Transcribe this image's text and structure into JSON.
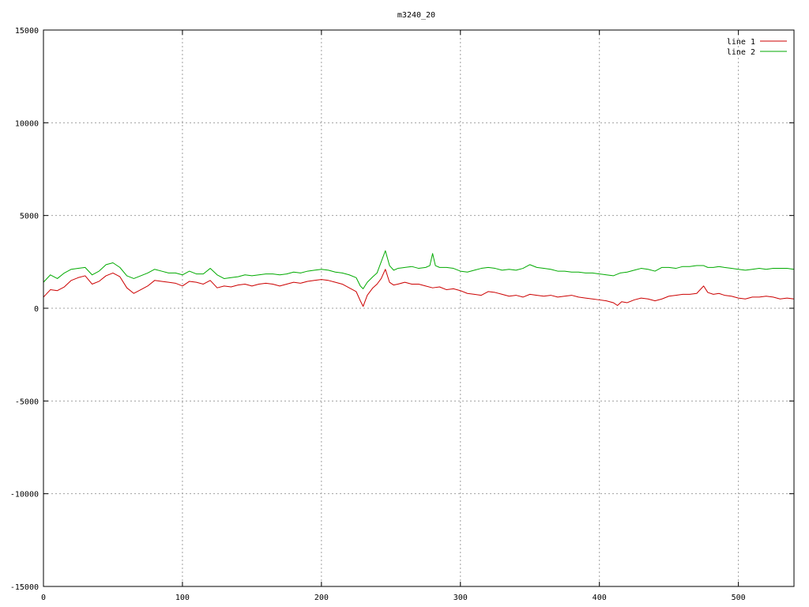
{
  "chart_data": {
    "type": "line",
    "title": "m3240_20",
    "xlabel": "",
    "ylabel": "",
    "xlim": [
      0,
      540
    ],
    "ylim": [
      -15000,
      15000
    ],
    "x_ticks": [
      0,
      100,
      200,
      300,
      400,
      500
    ],
    "y_ticks": [
      -15000,
      -10000,
      -5000,
      0,
      5000,
      10000,
      15000
    ],
    "x_tick_labels": [
      "0",
      "100",
      "200",
      "300",
      "400",
      "500"
    ],
    "y_tick_labels": [
      "-15000",
      "-10000",
      "-5000",
      "0",
      "5000",
      "10000",
      "15000"
    ],
    "grid": true,
    "legend_position": "top-right",
    "series": [
      {
        "name": "line 1",
        "color": "#cc0000",
        "points": [
          [
            0,
            600
          ],
          [
            5,
            1000
          ],
          [
            10,
            950
          ],
          [
            15,
            1150
          ],
          [
            20,
            1500
          ],
          [
            25,
            1650
          ],
          [
            30,
            1750
          ],
          [
            35,
            1300
          ],
          [
            40,
            1450
          ],
          [
            45,
            1750
          ],
          [
            50,
            1900
          ],
          [
            55,
            1700
          ],
          [
            60,
            1100
          ],
          [
            65,
            800
          ],
          [
            70,
            1000
          ],
          [
            75,
            1200
          ],
          [
            80,
            1500
          ],
          [
            85,
            1450
          ],
          [
            90,
            1400
          ],
          [
            95,
            1350
          ],
          [
            100,
            1200
          ],
          [
            105,
            1450
          ],
          [
            110,
            1400
          ],
          [
            115,
            1300
          ],
          [
            120,
            1500
          ],
          [
            125,
            1100
          ],
          [
            130,
            1200
          ],
          [
            135,
            1150
          ],
          [
            140,
            1250
          ],
          [
            145,
            1300
          ],
          [
            150,
            1200
          ],
          [
            155,
            1300
          ],
          [
            160,
            1350
          ],
          [
            165,
            1300
          ],
          [
            170,
            1200
          ],
          [
            175,
            1300
          ],
          [
            180,
            1400
          ],
          [
            185,
            1350
          ],
          [
            190,
            1450
          ],
          [
            195,
            1500
          ],
          [
            200,
            1550
          ],
          [
            205,
            1500
          ],
          [
            210,
            1400
          ],
          [
            215,
            1300
          ],
          [
            220,
            1100
          ],
          [
            225,
            900
          ],
          [
            228,
            400
          ],
          [
            230,
            100
          ],
          [
            233,
            700
          ],
          [
            237,
            1100
          ],
          [
            240,
            1300
          ],
          [
            243,
            1600
          ],
          [
            246,
            2100
          ],
          [
            249,
            1400
          ],
          [
            252,
            1250
          ],
          [
            255,
            1300
          ],
          [
            260,
            1400
          ],
          [
            265,
            1300
          ],
          [
            270,
            1300
          ],
          [
            275,
            1200
          ],
          [
            280,
            1100
          ],
          [
            285,
            1150
          ],
          [
            290,
            1000
          ],
          [
            295,
            1050
          ],
          [
            300,
            950
          ],
          [
            305,
            800
          ],
          [
            310,
            750
          ],
          [
            315,
            700
          ],
          [
            320,
            900
          ],
          [
            325,
            850
          ],
          [
            330,
            750
          ],
          [
            335,
            650
          ],
          [
            340,
            700
          ],
          [
            345,
            600
          ],
          [
            350,
            750
          ],
          [
            355,
            700
          ],
          [
            360,
            650
          ],
          [
            365,
            700
          ],
          [
            370,
            600
          ],
          [
            375,
            650
          ],
          [
            380,
            700
          ],
          [
            385,
            600
          ],
          [
            390,
            550
          ],
          [
            395,
            500
          ],
          [
            400,
            450
          ],
          [
            405,
            400
          ],
          [
            410,
            300
          ],
          [
            413,
            150
          ],
          [
            416,
            350
          ],
          [
            420,
            300
          ],
          [
            425,
            450
          ],
          [
            430,
            550
          ],
          [
            435,
            500
          ],
          [
            440,
            400
          ],
          [
            445,
            500
          ],
          [
            450,
            650
          ],
          [
            455,
            700
          ],
          [
            460,
            750
          ],
          [
            465,
            750
          ],
          [
            470,
            800
          ],
          [
            475,
            1200
          ],
          [
            478,
            850
          ],
          [
            482,
            750
          ],
          [
            486,
            800
          ],
          [
            490,
            700
          ],
          [
            495,
            650
          ],
          [
            500,
            550
          ],
          [
            505,
            500
          ],
          [
            510,
            600
          ],
          [
            515,
            600
          ],
          [
            520,
            650
          ],
          [
            525,
            600
          ],
          [
            530,
            500
          ],
          [
            535,
            550
          ],
          [
            540,
            500
          ]
        ]
      },
      {
        "name": "line 2",
        "color": "#00aa00",
        "points": [
          [
            0,
            1400
          ],
          [
            5,
            1800
          ],
          [
            10,
            1600
          ],
          [
            15,
            1900
          ],
          [
            20,
            2100
          ],
          [
            25,
            2150
          ],
          [
            30,
            2200
          ],
          [
            35,
            1800
          ],
          [
            40,
            2000
          ],
          [
            45,
            2350
          ],
          [
            50,
            2450
          ],
          [
            55,
            2200
          ],
          [
            60,
            1750
          ],
          [
            65,
            1600
          ],
          [
            70,
            1750
          ],
          [
            75,
            1900
          ],
          [
            80,
            2100
          ],
          [
            85,
            2000
          ],
          [
            90,
            1900
          ],
          [
            95,
            1900
          ],
          [
            100,
            1800
          ],
          [
            105,
            2000
          ],
          [
            110,
            1850
          ],
          [
            115,
            1850
          ],
          [
            120,
            2150
          ],
          [
            125,
            1800
          ],
          [
            130,
            1600
          ],
          [
            135,
            1650
          ],
          [
            140,
            1700
          ],
          [
            145,
            1800
          ],
          [
            150,
            1750
          ],
          [
            155,
            1800
          ],
          [
            160,
            1850
          ],
          [
            165,
            1850
          ],
          [
            170,
            1800
          ],
          [
            175,
            1850
          ],
          [
            180,
            1950
          ],
          [
            185,
            1900
          ],
          [
            190,
            2000
          ],
          [
            195,
            2050
          ],
          [
            200,
            2100
          ],
          [
            205,
            2050
          ],
          [
            210,
            1950
          ],
          [
            215,
            1900
          ],
          [
            220,
            1800
          ],
          [
            225,
            1650
          ],
          [
            228,
            1200
          ],
          [
            230,
            1050
          ],
          [
            233,
            1400
          ],
          [
            237,
            1700
          ],
          [
            240,
            1900
          ],
          [
            243,
            2500
          ],
          [
            246,
            3100
          ],
          [
            249,
            2300
          ],
          [
            252,
            2050
          ],
          [
            255,
            2150
          ],
          [
            260,
            2200
          ],
          [
            265,
            2250
          ],
          [
            270,
            2150
          ],
          [
            275,
            2200
          ],
          [
            278,
            2300
          ],
          [
            280,
            2950
          ],
          [
            282,
            2300
          ],
          [
            285,
            2200
          ],
          [
            290,
            2200
          ],
          [
            295,
            2150
          ],
          [
            300,
            2000
          ],
          [
            305,
            1950
          ],
          [
            310,
            2050
          ],
          [
            315,
            2150
          ],
          [
            320,
            2200
          ],
          [
            325,
            2150
          ],
          [
            330,
            2050
          ],
          [
            335,
            2100
          ],
          [
            340,
            2050
          ],
          [
            345,
            2150
          ],
          [
            350,
            2350
          ],
          [
            355,
            2200
          ],
          [
            360,
            2150
          ],
          [
            365,
            2100
          ],
          [
            370,
            2000
          ],
          [
            375,
            2000
          ],
          [
            380,
            1950
          ],
          [
            385,
            1950
          ],
          [
            390,
            1900
          ],
          [
            395,
            1900
          ],
          [
            400,
            1850
          ],
          [
            405,
            1800
          ],
          [
            410,
            1750
          ],
          [
            415,
            1900
          ],
          [
            420,
            1950
          ],
          [
            425,
            2050
          ],
          [
            430,
            2150
          ],
          [
            435,
            2100
          ],
          [
            440,
            2000
          ],
          [
            445,
            2200
          ],
          [
            450,
            2200
          ],
          [
            455,
            2150
          ],
          [
            460,
            2250
          ],
          [
            465,
            2250
          ],
          [
            470,
            2300
          ],
          [
            475,
            2300
          ],
          [
            478,
            2200
          ],
          [
            482,
            2200
          ],
          [
            486,
            2250
          ],
          [
            490,
            2200
          ],
          [
            495,
            2150
          ],
          [
            500,
            2100
          ],
          [
            505,
            2050
          ],
          [
            510,
            2100
          ],
          [
            515,
            2150
          ],
          [
            520,
            2100
          ],
          [
            525,
            2150
          ],
          [
            530,
            2150
          ],
          [
            535,
            2150
          ],
          [
            540,
            2100
          ]
        ]
      }
    ]
  }
}
